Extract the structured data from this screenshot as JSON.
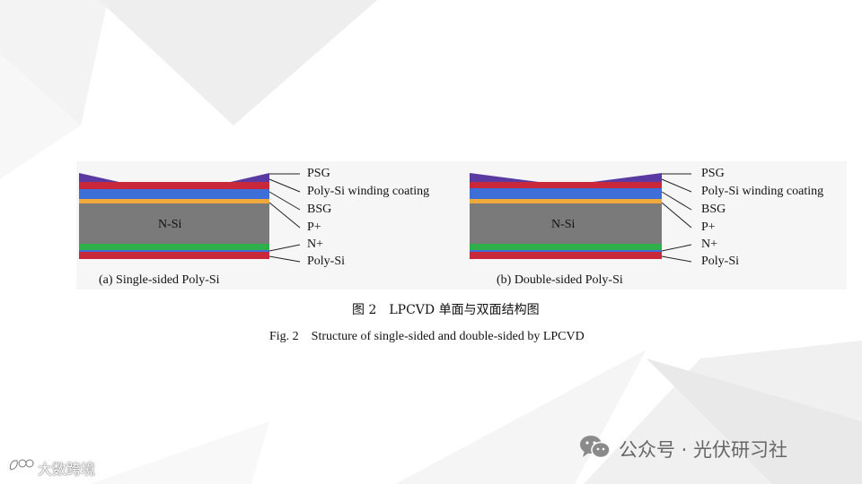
{
  "layers": [
    {
      "key": "psg",
      "label": "PSG",
      "color": "#5a3aa0"
    },
    {
      "key": "poly_winding",
      "label": "Poly-Si winding coating",
      "color": "#c8283a"
    },
    {
      "key": "bsg",
      "label": "BSG",
      "color": "#f0a83a"
    },
    {
      "key": "p_plus",
      "label": "P+",
      "color": "#3e6fd8"
    },
    {
      "key": "n_si",
      "label": "N-Si",
      "color": "#7a7a7a"
    },
    {
      "key": "n_plus",
      "label": "N+",
      "color": "#2db04a"
    },
    {
      "key": "poly_si",
      "label": "Poly-Si",
      "color": "#c8283a"
    }
  ],
  "panel_a": {
    "substrate_label": "N-Si",
    "caption": "(a) Single-sided Poly-Si",
    "labels": [
      "PSG",
      "Poly-Si winding coating",
      "BSG",
      "P+",
      "N+",
      "Poly-Si"
    ]
  },
  "panel_b": {
    "substrate_label": "N-Si",
    "caption": "(b) Double-sided Poly-Si",
    "labels": [
      "PSG",
      "Poly-Si winding coating",
      "BSG",
      "P+",
      "N+",
      "Poly-Si"
    ]
  },
  "caption": {
    "cn": "图 2　LPCVD 单面与双面结构图",
    "en": "Fig. 2　Structure of single-sided and double-sided by LPCVD"
  },
  "footer": {
    "wechat_text": "公众号 · 光伏研习社",
    "watermark_text": "大数跨境",
    "wechat_icon": "wechat-icon",
    "watermark_icon": "watermark-logo-icon"
  }
}
